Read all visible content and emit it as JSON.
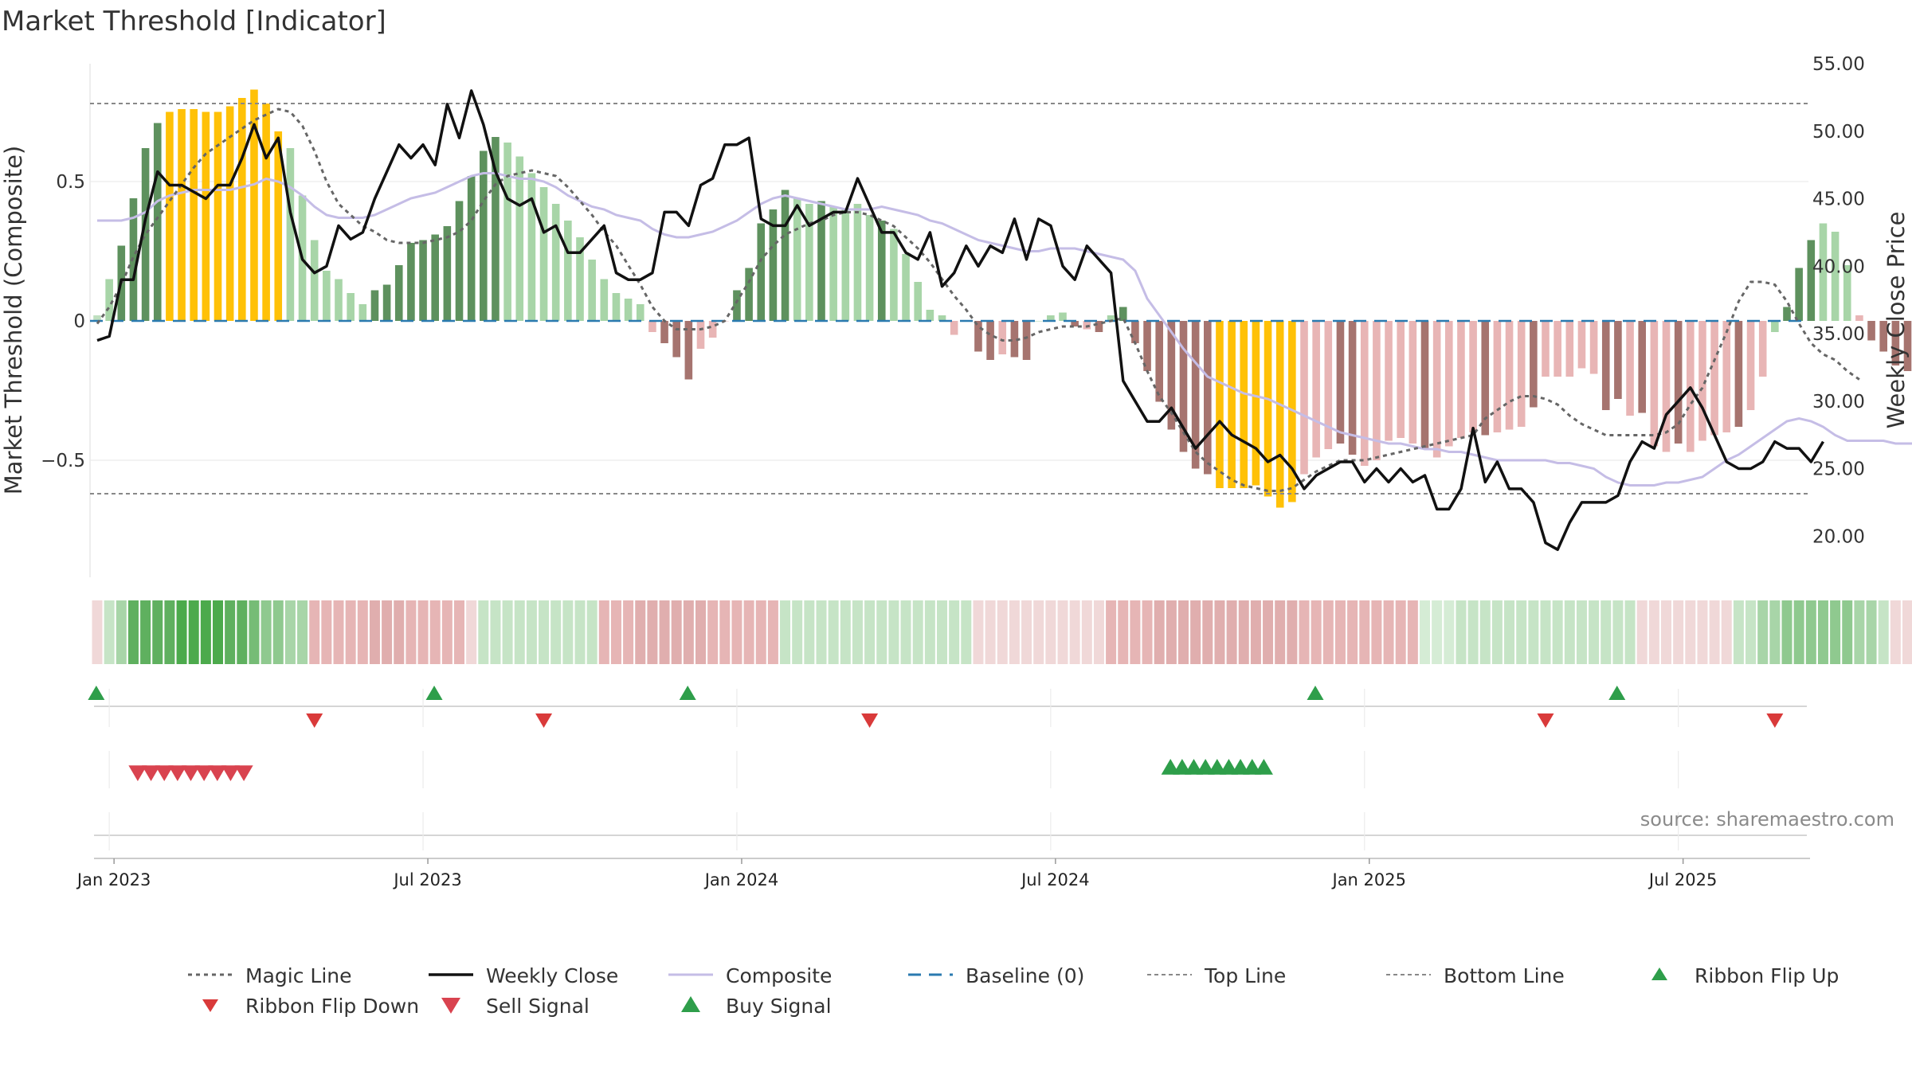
{
  "chart_data": {
    "type": "bar",
    "title": "Market Threshold [Indicator]",
    "ylabel": "Market Threshold (Composite)",
    "y2label": "Weekly Close Price",
    "ylim": [
      -0.92,
      0.92
    ],
    "y2lim": [
      16.0,
      57.0
    ],
    "yticks": [
      "0.5",
      "0",
      "−0.5"
    ],
    "y2ticks": [
      "55.00",
      "50.00",
      "45.00",
      "40.00",
      "35.00",
      "30.00",
      "25.00",
      "20.00"
    ],
    "xticks": [
      "Jan 2023",
      "Jul 2023",
      "Jan 2024",
      "Jul 2024",
      "Jan 2025",
      "Jul 2025"
    ],
    "xtick_weeks": [
      1,
      27,
      53,
      79,
      105,
      131
    ],
    "top_line": 0.78,
    "bottom_line": -0.62,
    "source": "source: sharemaestro.com",
    "composite_bars": [
      0.02,
      0.15,
      0.27,
      0.44,
      0.62,
      0.71,
      0.75,
      0.76,
      0.76,
      0.75,
      0.75,
      0.77,
      0.8,
      0.83,
      0.78,
      0.68,
      0.62,
      0.45,
      0.29,
      0.18,
      0.15,
      0.1,
      0.06,
      0.11,
      0.13,
      0.2,
      0.28,
      0.29,
      0.31,
      0.34,
      0.43,
      0.52,
      0.61,
      0.66,
      0.64,
      0.59,
      0.53,
      0.48,
      0.42,
      0.36,
      0.3,
      0.22,
      0.15,
      0.1,
      0.08,
      0.06,
      -0.04,
      -0.08,
      -0.13,
      -0.21,
      -0.1,
      -0.06,
      0.0,
      0.11,
      0.19,
      0.35,
      0.4,
      0.47,
      0.44,
      0.42,
      0.43,
      0.41,
      0.4,
      0.42,
      0.38,
      0.36,
      0.33,
      0.24,
      0.14,
      0.04,
      0.02,
      -0.05,
      0.0,
      -0.11,
      -0.14,
      -0.12,
      -0.13,
      -0.14,
      0.0,
      0.02,
      0.03,
      -0.02,
      -0.03,
      -0.04,
      0.02,
      0.05,
      -0.08,
      -0.18,
      -0.29,
      -0.39,
      -0.47,
      -0.53,
      -0.55,
      -0.6,
      -0.6,
      -0.6,
      -0.59,
      -0.63,
      -0.67,
      -0.65,
      -0.55,
      -0.49,
      -0.46,
      -0.44,
      -0.48,
      -0.52,
      -0.5,
      -0.43,
      -0.42,
      -0.44,
      -0.46,
      -0.49,
      -0.45,
      -0.42,
      -0.4,
      -0.41,
      -0.4,
      -0.39,
      -0.38,
      -0.31,
      -0.2,
      -0.2,
      -0.2,
      -0.17,
      -0.19,
      -0.32,
      -0.28,
      -0.34,
      -0.33,
      -0.45,
      -0.47,
      -0.44,
      -0.47,
      -0.43,
      -0.41,
      -0.4,
      -0.38,
      -0.32,
      -0.2,
      -0.04,
      0.05,
      0.19,
      0.29,
      0.35,
      0.32,
      0.2,
      0.02,
      -0.07,
      -0.11,
      -0.16,
      -0.18,
      -0.24,
      -0.27,
      -0.38,
      -0.36
    ],
    "bar_colors": [
      "#bfdfbf",
      "#a8d5a8",
      "#5e915e",
      "#5e915e",
      "#5e915e",
      "#5e915e",
      "#ffc107",
      "#ffc107",
      "#ffc107",
      "#ffc107",
      "#ffc107",
      "#ffc107",
      "#ffc107",
      "#ffc107",
      "#ffc107",
      "#ffc107",
      "#a8d5a8",
      "#a8d5a8",
      "#a8d5a8",
      "#a8d5a8",
      "#a8d5a8",
      "#a8d5a8",
      "#a8d5a8",
      "#5e915e",
      "#5e915e",
      "#5e915e",
      "#5e915e",
      "#5e915e",
      "#5e915e",
      "#5e915e",
      "#5e915e",
      "#5e915e",
      "#5e915e",
      "#5e915e",
      "#a8d5a8",
      "#a8d5a8",
      "#a8d5a8",
      "#a8d5a8",
      "#a8d5a8",
      "#a8d5a8",
      "#a8d5a8",
      "#a8d5a8",
      "#a8d5a8",
      "#a8d5a8",
      "#a8d5a8",
      "#a8d5a8",
      "#e8b5b5",
      "#a6746f",
      "#a6746f",
      "#a6746f",
      "#e8b5b5",
      "#e8b5b5",
      "#e8b5b5",
      "#5e915e",
      "#5e915e",
      "#5e915e",
      "#5e915e",
      "#5e915e",
      "#a8d5a8",
      "#a8d5a8",
      "#5e915e",
      "#a8d5a8",
      "#a8d5a8",
      "#a8d5a8",
      "#a8d5a8",
      "#5e915e",
      "#a8d5a8",
      "#a8d5a8",
      "#a8d5a8",
      "#a8d5a8",
      "#a8d5a8",
      "#e8b5b5",
      "#a8d5a8",
      "#a6746f",
      "#a6746f",
      "#e8b5b5",
      "#a6746f",
      "#a6746f",
      "#a8d5a8",
      "#a8d5a8",
      "#a8d5a8",
      "#a6746f",
      "#e8b5b5",
      "#a6746f",
      "#a8d5a8",
      "#5e915e",
      "#a6746f",
      "#a6746f",
      "#a6746f",
      "#a6746f",
      "#a6746f",
      "#a6746f",
      "#a6746f",
      "#ffc107",
      "#ffc107",
      "#ffc107",
      "#ffc107",
      "#ffc107",
      "#ffc107",
      "#ffc107",
      "#e8b5b5",
      "#e8b5b5",
      "#e8b5b5",
      "#a6746f",
      "#a6746f",
      "#e8b5b5",
      "#e8b5b5",
      "#e8b5b5",
      "#e8b5b5",
      "#e8b5b5",
      "#a6746f",
      "#e8b5b5",
      "#e8b5b5",
      "#e8b5b5",
      "#e8b5b5",
      "#a6746f",
      "#e8b5b5",
      "#e8b5b5",
      "#e8b5b5",
      "#a6746f",
      "#e8b5b5",
      "#e8b5b5",
      "#e8b5b5",
      "#e8b5b5",
      "#e8b5b5",
      "#a6746f",
      "#a6746f",
      "#e8b5b5",
      "#a6746f",
      "#e8b5b5",
      "#e8b5b5",
      "#a6746f",
      "#e8b5b5",
      "#e8b5b5",
      "#e8b5b5",
      "#e8b5b5",
      "#a6746f",
      "#e8b5b5",
      "#e8b5b5",
      "#a8d5a8",
      "#5e915e",
      "#5e915e",
      "#5e915e",
      "#a8d5a8",
      "#a8d5a8",
      "#a8d5a8",
      "#e8b5b5",
      "#a6746f",
      "#a6746f",
      "#a6746f",
      "#a6746f",
      "#e8b5b5"
    ],
    "composite_line": [
      0.36,
      0.36,
      0.36,
      0.37,
      0.39,
      0.43,
      0.45,
      0.46,
      0.47,
      0.47,
      0.47,
      0.47,
      0.48,
      0.49,
      0.51,
      0.5,
      0.48,
      0.45,
      0.41,
      0.38,
      0.37,
      0.37,
      0.37,
      0.38,
      0.4,
      0.42,
      0.44,
      0.45,
      0.46,
      0.48,
      0.5,
      0.52,
      0.53,
      0.53,
      0.52,
      0.51,
      0.51,
      0.5,
      0.48,
      0.45,
      0.43,
      0.41,
      0.4,
      0.38,
      0.37,
      0.36,
      0.33,
      0.31,
      0.3,
      0.3,
      0.31,
      0.32,
      0.34,
      0.36,
      0.39,
      0.42,
      0.44,
      0.45,
      0.44,
      0.43,
      0.42,
      0.41,
      0.4,
      0.4,
      0.4,
      0.41,
      0.4,
      0.39,
      0.38,
      0.36,
      0.35,
      0.33,
      0.31,
      0.29,
      0.28,
      0.27,
      0.26,
      0.25,
      0.25,
      0.26,
      0.26,
      0.26,
      0.25,
      0.24,
      0.23,
      0.22,
      0.18,
      0.08,
      0.02,
      -0.04,
      -0.1,
      -0.15,
      -0.2,
      -0.22,
      -0.24,
      -0.26,
      -0.27,
      -0.28,
      -0.3,
      -0.32,
      -0.34,
      -0.36,
      -0.38,
      -0.4,
      -0.41,
      -0.42,
      -0.43,
      -0.44,
      -0.44,
      -0.45,
      -0.46,
      -0.46,
      -0.47,
      -0.47,
      -0.48,
      -0.49,
      -0.5,
      -0.5,
      -0.5,
      -0.5,
      -0.5,
      -0.51,
      -0.51,
      -0.52,
      -0.53,
      -0.56,
      -0.58,
      -0.59,
      -0.59,
      -0.59,
      -0.58,
      -0.58,
      -0.57,
      -0.56,
      -0.53,
      -0.5,
      -0.48,
      -0.45,
      -0.42,
      -0.39,
      -0.36,
      -0.35,
      -0.36,
      -0.38,
      -0.41,
      -0.43,
      -0.43,
      -0.43,
      -0.43,
      -0.44,
      -0.44,
      -0.44
    ],
    "magic_line": [
      -0.01,
      0.05,
      0.13,
      0.23,
      0.31,
      0.37,
      0.43,
      0.49,
      0.55,
      0.6,
      0.63,
      0.66,
      0.69,
      0.72,
      0.74,
      0.76,
      0.75,
      0.7,
      0.61,
      0.5,
      0.42,
      0.38,
      0.34,
      0.32,
      0.29,
      0.28,
      0.28,
      0.28,
      0.29,
      0.3,
      0.32,
      0.36,
      0.43,
      0.49,
      0.52,
      0.53,
      0.54,
      0.53,
      0.52,
      0.48,
      0.43,
      0.38,
      0.32,
      0.27,
      0.2,
      0.13,
      0.05,
      0.0,
      -0.03,
      -0.03,
      -0.03,
      -0.02,
      0.0,
      0.07,
      0.14,
      0.22,
      0.27,
      0.31,
      0.33,
      0.35,
      0.36,
      0.38,
      0.39,
      0.39,
      0.38,
      0.36,
      0.34,
      0.3,
      0.26,
      0.21,
      0.15,
      0.09,
      0.04,
      -0.02,
      -0.05,
      -0.07,
      -0.07,
      -0.06,
      -0.04,
      -0.03,
      -0.02,
      -0.02,
      -0.02,
      -0.01,
      0.0,
      0.01,
      -0.08,
      -0.18,
      -0.27,
      -0.33,
      -0.4,
      -0.47,
      -0.51,
      -0.54,
      -0.57,
      -0.59,
      -0.6,
      -0.61,
      -0.61,
      -0.6,
      -0.57,
      -0.54,
      -0.52,
      -0.5,
      -0.5,
      -0.5,
      -0.49,
      -0.48,
      -0.47,
      -0.46,
      -0.45,
      -0.44,
      -0.43,
      -0.42,
      -0.41,
      -0.35,
      -0.32,
      -0.29,
      -0.27,
      -0.27,
      -0.28,
      -0.3,
      -0.34,
      -0.37,
      -0.39,
      -0.41,
      -0.41,
      -0.41,
      -0.41,
      -0.41,
      -0.4,
      -0.37,
      -0.3,
      -0.24,
      -0.14,
      -0.04,
      0.07,
      0.14,
      0.14,
      0.13,
      0.07,
      -0.01,
      -0.08,
      -0.12,
      -0.14,
      -0.18,
      -0.21
    ],
    "weekly_close": [
      34.5,
      34.8,
      39.0,
      39.0,
      43.5,
      47.0,
      46.0,
      46.0,
      45.5,
      45.0,
      46.0,
      46.0,
      48.0,
      50.5,
      48.0,
      49.5,
      44.0,
      40.5,
      39.5,
      40.0,
      43.0,
      42.0,
      42.5,
      45.0,
      47.0,
      49.0,
      48.0,
      49.0,
      47.5,
      52.0,
      49.5,
      53.0,
      50.5,
      47.0,
      45.0,
      44.5,
      45.0,
      42.5,
      43.0,
      41.0,
      41.0,
      42.0,
      43.0,
      39.5,
      39.0,
      39.0,
      39.5,
      44.0,
      44.0,
      43.0,
      46.0,
      46.5,
      49.0,
      49.0,
      49.5,
      43.5,
      43.0,
      43.0,
      44.5,
      43.0,
      43.5,
      44.0,
      44.0,
      46.5,
      44.5,
      42.5,
      42.5,
      41.0,
      40.5,
      42.5,
      38.5,
      39.5,
      41.5,
      40.0,
      41.5,
      41.0,
      43.5,
      40.5,
      43.5,
      43.0,
      40.0,
      39.0,
      41.5,
      40.5,
      39.5,
      31.5,
      30.0,
      28.5,
      28.5,
      29.5,
      28.0,
      26.5,
      27.5,
      28.5,
      27.5,
      27.0,
      26.5,
      25.5,
      26.0,
      25.0,
      23.5,
      24.5,
      25.0,
      25.5,
      25.5,
      24.0,
      25.0,
      24.0,
      25.0,
      24.0,
      24.5,
      22.0,
      22.0,
      23.5,
      28.0,
      24.0,
      25.5,
      23.5,
      23.5,
      22.5,
      19.5,
      19.0,
      21.0,
      22.5,
      22.5,
      22.5,
      23.0,
      25.5,
      27.0,
      26.5,
      29.0,
      30.0,
      31.0,
      29.5,
      27.5,
      25.5,
      25.0,
      25.0,
      25.5,
      27.0,
      26.5,
      26.5,
      25.5,
      27.0
    ],
    "ribbon_colors": [
      "#f0d8d8",
      "#c6e4c6",
      "#a8d5a8",
      "#5fb05f",
      "#5fb05f",
      "#5fb05f",
      "#5fb05f",
      "#4caa4c",
      "#4caa4c",
      "#4caa4c",
      "#4caa4c",
      "#5fb05f",
      "#5fb05f",
      "#76bc76",
      "#8fc98f",
      "#8fc98f",
      "#a8d5a8",
      "#a8d5a8",
      "#e6b5b5",
      "#e6b5b5",
      "#e6b5b5",
      "#e6b5b5",
      "#e6b5b5",
      "#e0aeae",
      "#e0aeae",
      "#e0aeae",
      "#e6b5b5",
      "#e6b5b5",
      "#e6b5b5",
      "#e6b5b5",
      "#e6b5b5",
      "#f0d8d8",
      "#c6e4c6",
      "#c6e4c6",
      "#c6e4c6",
      "#c6e4c6",
      "#c6e4c6",
      "#c6e4c6",
      "#c6e4c6",
      "#c6e4c6",
      "#c6e4c6",
      "#c6e4c6",
      "#e6b5b5",
      "#e6b5b5",
      "#e6b5b5",
      "#e0aeae",
      "#e0aeae",
      "#e0aeae",
      "#e0aeae",
      "#e0aeae",
      "#e0aeae",
      "#e6b5b5",
      "#e6b5b5",
      "#e6b5b5",
      "#e6b5b5",
      "#e6b5b5",
      "#e6b5b5",
      "#c6e4c6",
      "#c6e4c6",
      "#c6e4c6",
      "#c6e4c6",
      "#c6e4c6",
      "#c6e4c6",
      "#c6e4c6",
      "#c6e4c6",
      "#c6e4c6",
      "#c6e4c6",
      "#c6e4c6",
      "#c6e4c6",
      "#c6e4c6",
      "#c6e4c6",
      "#c6e4c6",
      "#c6e4c6",
      "#f0d8d8",
      "#f0d8d8",
      "#f0d8d8",
      "#f0d8d8",
      "#f0d8d8",
      "#f0d8d8",
      "#f0d8d8",
      "#f0d8d8",
      "#f0d8d8",
      "#f0d8d8",
      "#f0d8d8",
      "#e6b5b5",
      "#e6b5b5",
      "#e6b5b5",
      "#e6b5b5",
      "#e0aeae",
      "#e0aeae",
      "#e0aeae",
      "#e0aeae",
      "#e0aeae",
      "#e0aeae",
      "#e0aeae",
      "#e0aeae",
      "#e0aeae",
      "#e0aeae",
      "#e0aeae",
      "#e0aeae",
      "#e6b5b5",
      "#e6b5b5",
      "#e6b5b5",
      "#e6b5b5",
      "#e6b5b5",
      "#e6b5b5",
      "#e6b5b5",
      "#e6b5b5",
      "#e6b5b5",
      "#e6b5b5",
      "#d5ecd5",
      "#d5ecd5",
      "#d5ecd5",
      "#c6e4c6",
      "#c6e4c6",
      "#c6e4c6",
      "#c6e4c6",
      "#c6e4c6",
      "#c6e4c6",
      "#c6e4c6",
      "#c6e4c6",
      "#c6e4c6",
      "#c6e4c6",
      "#c6e4c6",
      "#c6e4c6",
      "#c6e4c6",
      "#c6e4c6",
      "#c6e4c6",
      "#f0d8d8",
      "#f0d8d8",
      "#f0d8d8",
      "#f0d8d8",
      "#f0d8d8",
      "#f0d8d8",
      "#f0d8d8",
      "#f0d8d8",
      "#c6e4c6",
      "#c6e4c6",
      "#a8d5a8",
      "#a8d5a8",
      "#8fc98f",
      "#8fc98f",
      "#8fc98f",
      "#8fc98f",
      "#8fc98f",
      "#8fc98f",
      "#a8d5a8",
      "#a8d5a8",
      "#c6e4c6",
      "#f0d8d8",
      "#f0d8d8",
      "#e6b5b5",
      "#e6b5b5",
      "#e6b5b5"
    ],
    "ribbon_flip_up_weeks": [
      0,
      28,
      49,
      101,
      126
    ],
    "ribbon_flip_down_weeks": [
      18,
      37,
      64,
      120,
      139
    ],
    "sell_signal_weeks": [
      6,
      7,
      8,
      9,
      10,
      11,
      12,
      13,
      14
    ],
    "buy_signal_weeks": [
      88,
      89,
      90,
      91,
      92,
      93,
      94,
      95,
      96
    ],
    "colors": {
      "bull_strong": "#5e915e",
      "bull_weak": "#a8d5a8",
      "bear_strong": "#a6746f",
      "bear_weak": "#e8b5b5",
      "extreme": "#ffc107",
      "composite": "#c5bde6",
      "weekly_close": "#111111",
      "magic_line": "#666666",
      "baseline": "#2a7ab0",
      "flip_up": "#2e9e4a",
      "flip_down": "#d93a3a",
      "sell": "#d9434f",
      "buy": "#2e9e4a"
    },
    "legend": [
      {
        "label": "Magic Line",
        "style": "magic"
      },
      {
        "label": "Weekly Close",
        "style": "close"
      },
      {
        "label": "Composite",
        "style": "composite"
      },
      {
        "label": "Baseline (0)",
        "style": "baseline"
      },
      {
        "label": "Top Line",
        "style": "topline"
      },
      {
        "label": "Bottom Line",
        "style": "bottomline"
      },
      {
        "label": "Ribbon Flip Up",
        "style": "flipup"
      },
      {
        "label": "Ribbon Flip Down",
        "style": "flipdown"
      },
      {
        "label": "Sell Signal",
        "style": "sell"
      },
      {
        "label": "Buy Signal",
        "style": "buy"
      }
    ],
    "legend_position": "bottom"
  }
}
